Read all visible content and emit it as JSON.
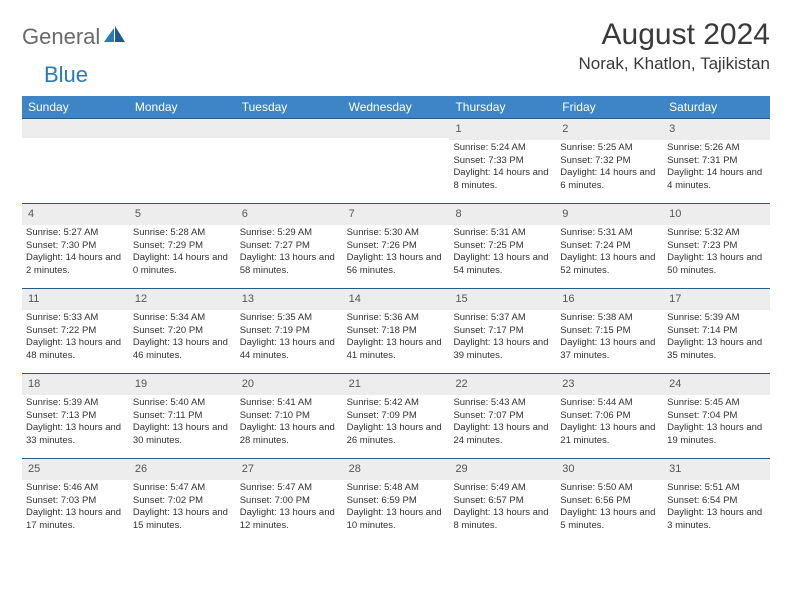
{
  "logo": {
    "part1": "General",
    "part2": "Blue"
  },
  "title": "August 2024",
  "location": "Norak, Khatlon, Tajikistan",
  "weekdays": [
    "Sunday",
    "Monday",
    "Tuesday",
    "Wednesday",
    "Thursday",
    "Friday",
    "Saturday"
  ],
  "colors": {
    "header_bg": "#3d85c6",
    "header_text": "#ffffff",
    "daynum_bg": "#ededed",
    "border": "#2a5a8a",
    "logo_gray": "#6a6a6a",
    "logo_blue": "#2a7ab8"
  },
  "weeks": [
    [
      {
        "n": "",
        "sunrise": "",
        "sunset": "",
        "daylight": ""
      },
      {
        "n": "",
        "sunrise": "",
        "sunset": "",
        "daylight": ""
      },
      {
        "n": "",
        "sunrise": "",
        "sunset": "",
        "daylight": ""
      },
      {
        "n": "",
        "sunrise": "",
        "sunset": "",
        "daylight": ""
      },
      {
        "n": "1",
        "sunrise": "Sunrise: 5:24 AM",
        "sunset": "Sunset: 7:33 PM",
        "daylight": "Daylight: 14 hours and 8 minutes."
      },
      {
        "n": "2",
        "sunrise": "Sunrise: 5:25 AM",
        "sunset": "Sunset: 7:32 PM",
        "daylight": "Daylight: 14 hours and 6 minutes."
      },
      {
        "n": "3",
        "sunrise": "Sunrise: 5:26 AM",
        "sunset": "Sunset: 7:31 PM",
        "daylight": "Daylight: 14 hours and 4 minutes."
      }
    ],
    [
      {
        "n": "4",
        "sunrise": "Sunrise: 5:27 AM",
        "sunset": "Sunset: 7:30 PM",
        "daylight": "Daylight: 14 hours and 2 minutes."
      },
      {
        "n": "5",
        "sunrise": "Sunrise: 5:28 AM",
        "sunset": "Sunset: 7:29 PM",
        "daylight": "Daylight: 14 hours and 0 minutes."
      },
      {
        "n": "6",
        "sunrise": "Sunrise: 5:29 AM",
        "sunset": "Sunset: 7:27 PM",
        "daylight": "Daylight: 13 hours and 58 minutes."
      },
      {
        "n": "7",
        "sunrise": "Sunrise: 5:30 AM",
        "sunset": "Sunset: 7:26 PM",
        "daylight": "Daylight: 13 hours and 56 minutes."
      },
      {
        "n": "8",
        "sunrise": "Sunrise: 5:31 AM",
        "sunset": "Sunset: 7:25 PM",
        "daylight": "Daylight: 13 hours and 54 minutes."
      },
      {
        "n": "9",
        "sunrise": "Sunrise: 5:31 AM",
        "sunset": "Sunset: 7:24 PM",
        "daylight": "Daylight: 13 hours and 52 minutes."
      },
      {
        "n": "10",
        "sunrise": "Sunrise: 5:32 AM",
        "sunset": "Sunset: 7:23 PM",
        "daylight": "Daylight: 13 hours and 50 minutes."
      }
    ],
    [
      {
        "n": "11",
        "sunrise": "Sunrise: 5:33 AM",
        "sunset": "Sunset: 7:22 PM",
        "daylight": "Daylight: 13 hours and 48 minutes."
      },
      {
        "n": "12",
        "sunrise": "Sunrise: 5:34 AM",
        "sunset": "Sunset: 7:20 PM",
        "daylight": "Daylight: 13 hours and 46 minutes."
      },
      {
        "n": "13",
        "sunrise": "Sunrise: 5:35 AM",
        "sunset": "Sunset: 7:19 PM",
        "daylight": "Daylight: 13 hours and 44 minutes."
      },
      {
        "n": "14",
        "sunrise": "Sunrise: 5:36 AM",
        "sunset": "Sunset: 7:18 PM",
        "daylight": "Daylight: 13 hours and 41 minutes."
      },
      {
        "n": "15",
        "sunrise": "Sunrise: 5:37 AM",
        "sunset": "Sunset: 7:17 PM",
        "daylight": "Daylight: 13 hours and 39 minutes."
      },
      {
        "n": "16",
        "sunrise": "Sunrise: 5:38 AM",
        "sunset": "Sunset: 7:15 PM",
        "daylight": "Daylight: 13 hours and 37 minutes."
      },
      {
        "n": "17",
        "sunrise": "Sunrise: 5:39 AM",
        "sunset": "Sunset: 7:14 PM",
        "daylight": "Daylight: 13 hours and 35 minutes."
      }
    ],
    [
      {
        "n": "18",
        "sunrise": "Sunrise: 5:39 AM",
        "sunset": "Sunset: 7:13 PM",
        "daylight": "Daylight: 13 hours and 33 minutes."
      },
      {
        "n": "19",
        "sunrise": "Sunrise: 5:40 AM",
        "sunset": "Sunset: 7:11 PM",
        "daylight": "Daylight: 13 hours and 30 minutes."
      },
      {
        "n": "20",
        "sunrise": "Sunrise: 5:41 AM",
        "sunset": "Sunset: 7:10 PM",
        "daylight": "Daylight: 13 hours and 28 minutes."
      },
      {
        "n": "21",
        "sunrise": "Sunrise: 5:42 AM",
        "sunset": "Sunset: 7:09 PM",
        "daylight": "Daylight: 13 hours and 26 minutes."
      },
      {
        "n": "22",
        "sunrise": "Sunrise: 5:43 AM",
        "sunset": "Sunset: 7:07 PM",
        "daylight": "Daylight: 13 hours and 24 minutes."
      },
      {
        "n": "23",
        "sunrise": "Sunrise: 5:44 AM",
        "sunset": "Sunset: 7:06 PM",
        "daylight": "Daylight: 13 hours and 21 minutes."
      },
      {
        "n": "24",
        "sunrise": "Sunrise: 5:45 AM",
        "sunset": "Sunset: 7:04 PM",
        "daylight": "Daylight: 13 hours and 19 minutes."
      }
    ],
    [
      {
        "n": "25",
        "sunrise": "Sunrise: 5:46 AM",
        "sunset": "Sunset: 7:03 PM",
        "daylight": "Daylight: 13 hours and 17 minutes."
      },
      {
        "n": "26",
        "sunrise": "Sunrise: 5:47 AM",
        "sunset": "Sunset: 7:02 PM",
        "daylight": "Daylight: 13 hours and 15 minutes."
      },
      {
        "n": "27",
        "sunrise": "Sunrise: 5:47 AM",
        "sunset": "Sunset: 7:00 PM",
        "daylight": "Daylight: 13 hours and 12 minutes."
      },
      {
        "n": "28",
        "sunrise": "Sunrise: 5:48 AM",
        "sunset": "Sunset: 6:59 PM",
        "daylight": "Daylight: 13 hours and 10 minutes."
      },
      {
        "n": "29",
        "sunrise": "Sunrise: 5:49 AM",
        "sunset": "Sunset: 6:57 PM",
        "daylight": "Daylight: 13 hours and 8 minutes."
      },
      {
        "n": "30",
        "sunrise": "Sunrise: 5:50 AM",
        "sunset": "Sunset: 6:56 PM",
        "daylight": "Daylight: 13 hours and 5 minutes."
      },
      {
        "n": "31",
        "sunrise": "Sunrise: 5:51 AM",
        "sunset": "Sunset: 6:54 PM",
        "daylight": "Daylight: 13 hours and 3 minutes."
      }
    ]
  ]
}
